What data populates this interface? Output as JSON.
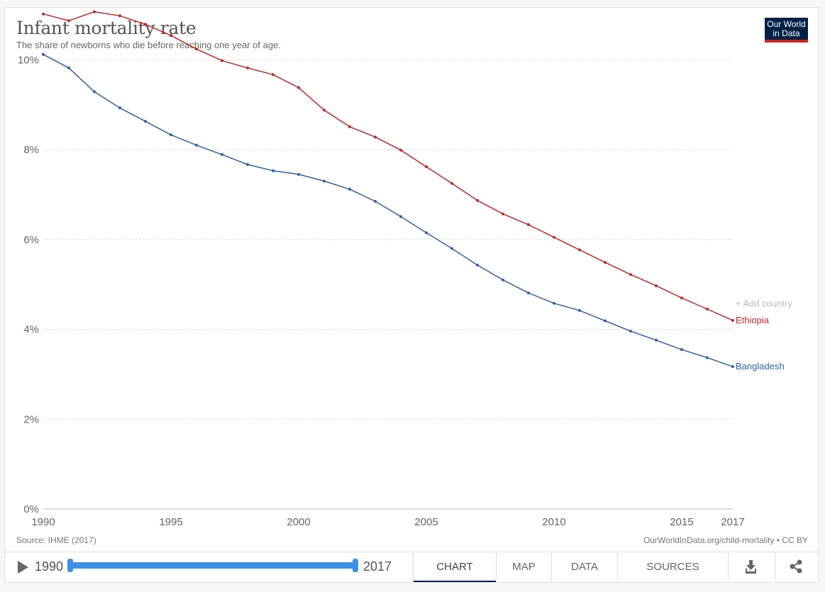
{
  "header": {
    "title": "Infant mortality rate",
    "subtitle": "The share of newborns who die before reaching one year of age.",
    "logo_line1": "Our World",
    "logo_line2": "in Data"
  },
  "footer": {
    "source": "Source: IHME (2017)",
    "url": "OurWorldInData.org/child-mortality • CC BY"
  },
  "controls": {
    "play_icon": "play-icon",
    "start_year": "1990",
    "end_year": "2017",
    "tabs": [
      "CHART",
      "MAP",
      "DATA",
      "SOURCES"
    ],
    "download_icon": "download-icon",
    "share_icon": "share-icon"
  },
  "add_country_label": "+ Add country",
  "chart_data": {
    "type": "line",
    "title": "Infant mortality rate",
    "xlabel": "",
    "ylabel": "",
    "xlim": [
      1990,
      2017
    ],
    "ylim": [
      0,
      11
    ],
    "y_ticks": [
      0,
      2,
      4,
      6,
      8,
      10
    ],
    "y_tick_labels": [
      "0%",
      "2%",
      "4%",
      "6%",
      "8%",
      "10%"
    ],
    "x_ticks": [
      1990,
      1995,
      2000,
      2005,
      2010,
      2015,
      2017
    ],
    "x_tick_labels": [
      "1990",
      "1995",
      "2000",
      "2005",
      "2010",
      "2015",
      "2017"
    ],
    "grid": "horizontal dashed",
    "x": [
      1990,
      1991,
      1992,
      1993,
      1994,
      1995,
      1996,
      1997,
      1998,
      1999,
      2000,
      2001,
      2002,
      2003,
      2004,
      2005,
      2006,
      2007,
      2008,
      2009,
      2010,
      2011,
      2012,
      2013,
      2014,
      2015,
      2016,
      2017
    ],
    "series": [
      {
        "name": "Ethiopia",
        "color": "#c0282d",
        "values": [
          11.02,
          10.87,
          11.07,
          10.98,
          10.79,
          10.54,
          10.24,
          9.98,
          9.82,
          9.67,
          9.38,
          8.88,
          8.51,
          8.28,
          7.99,
          7.62,
          7.25,
          6.87,
          6.57,
          6.33,
          6.05,
          5.77,
          5.49,
          5.22,
          4.97,
          4.7,
          4.45,
          4.2
        ]
      },
      {
        "name": "Bangladesh",
        "color": "#3360a9",
        "values": [
          10.12,
          9.82,
          9.29,
          8.93,
          8.63,
          8.33,
          8.1,
          7.89,
          7.67,
          7.53,
          7.45,
          7.3,
          7.12,
          6.85,
          6.51,
          6.15,
          5.8,
          5.43,
          5.1,
          4.81,
          4.58,
          4.42,
          4.19,
          3.96,
          3.76,
          3.55,
          3.37,
          3.17
        ]
      }
    ]
  }
}
